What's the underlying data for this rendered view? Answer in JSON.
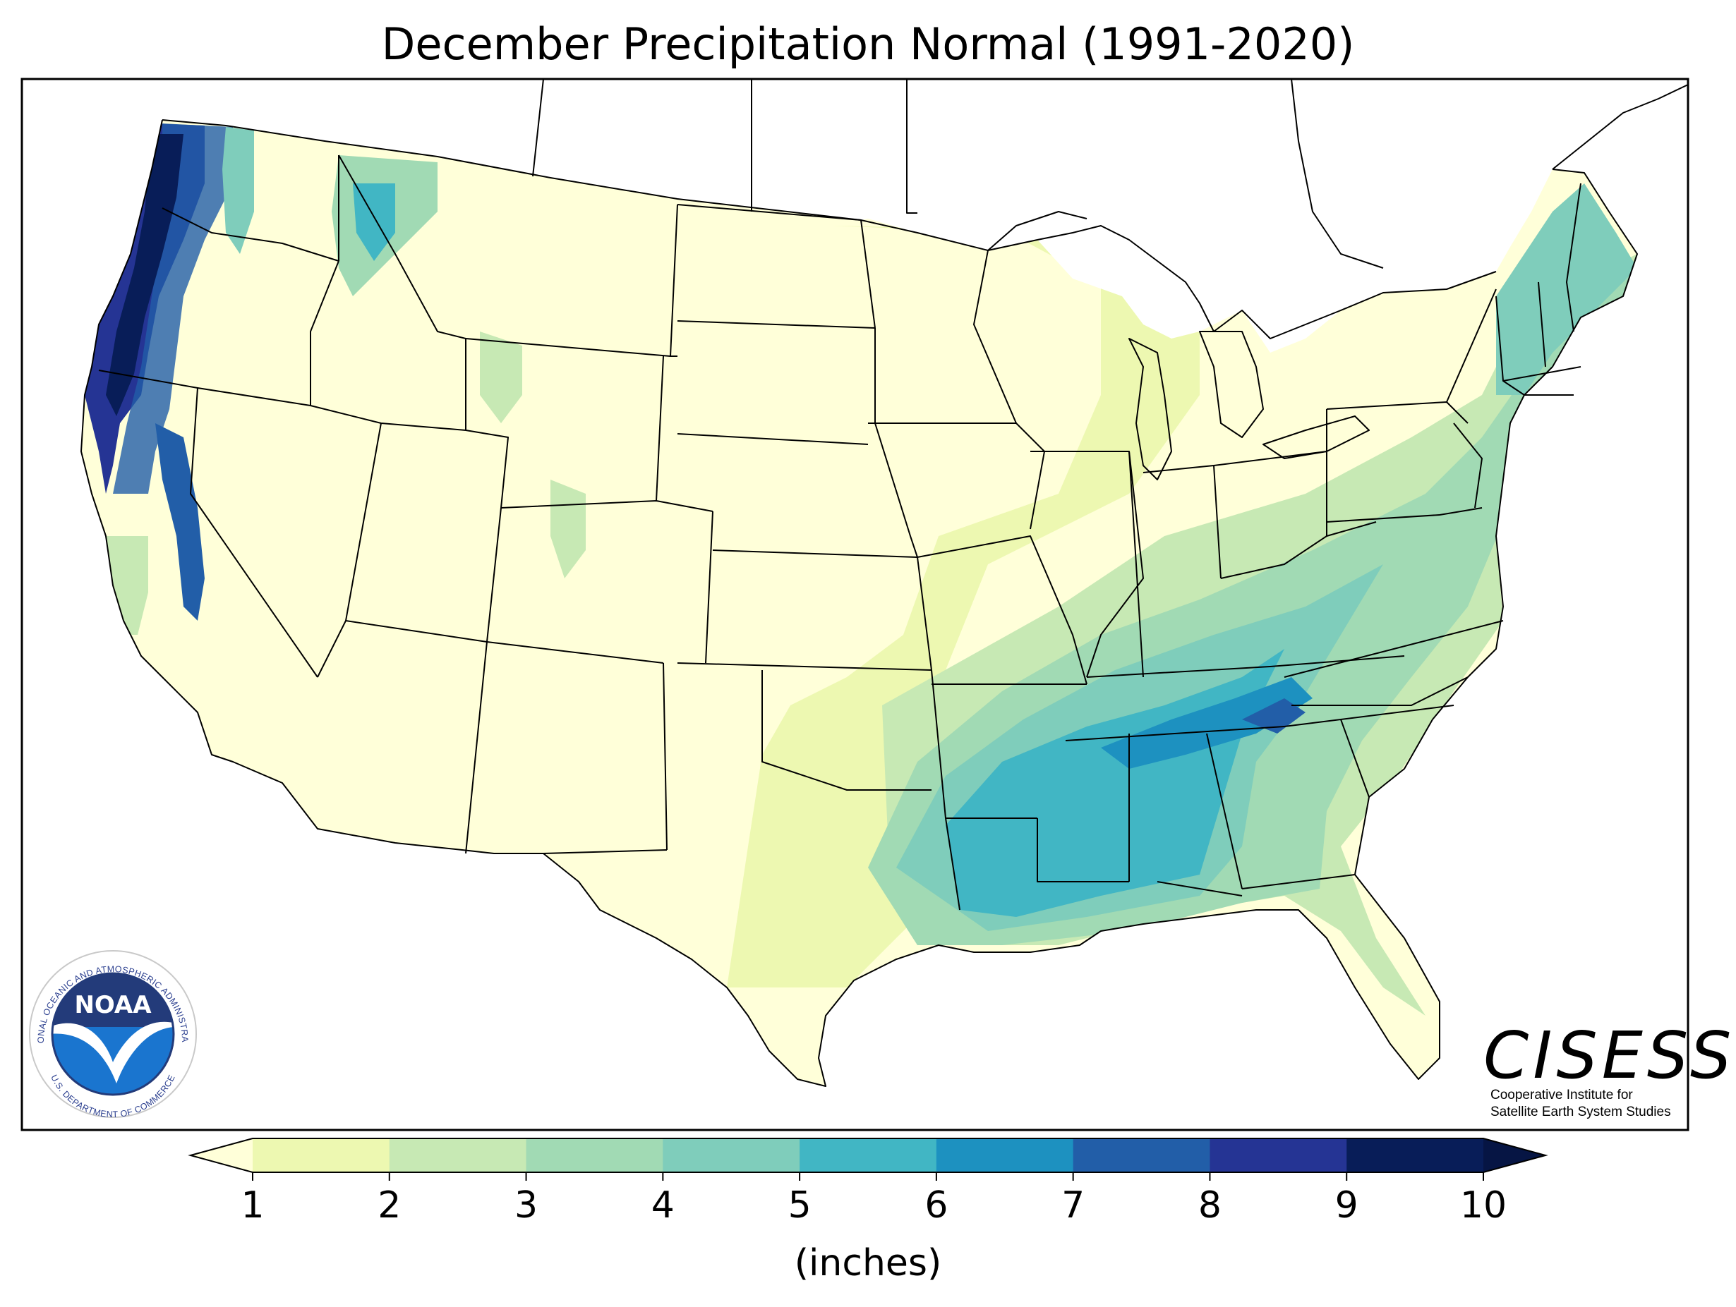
{
  "title": "December Precipitation Normal (1991-2020)",
  "colorbar": {
    "unit_label": "(inches)",
    "ticks": [
      "1",
      "2",
      "3",
      "4",
      "5",
      "6",
      "7",
      "8",
      "9",
      "10"
    ],
    "colors": [
      "#ffffd9",
      "#edf8b1",
      "#c7e9b4",
      "#a1dab4",
      "#7fcdbb",
      "#41b6c4",
      "#1d91c0",
      "#225ea8",
      "#253494",
      "#081d58",
      "#061544"
    ],
    "extend": "both"
  },
  "logos": {
    "noaa": {
      "word": "NOAA",
      "ring_top": "NATIONAL OCEANIC AND ATMOSPHERIC ADMINISTRATION",
      "ring_bottom": "U.S. DEPARTMENT OF COMMERCE"
    },
    "cisess": {
      "name": "CISESS",
      "line1": "Cooperative Institute for",
      "line2": "Satellite Earth System Studies"
    }
  }
}
